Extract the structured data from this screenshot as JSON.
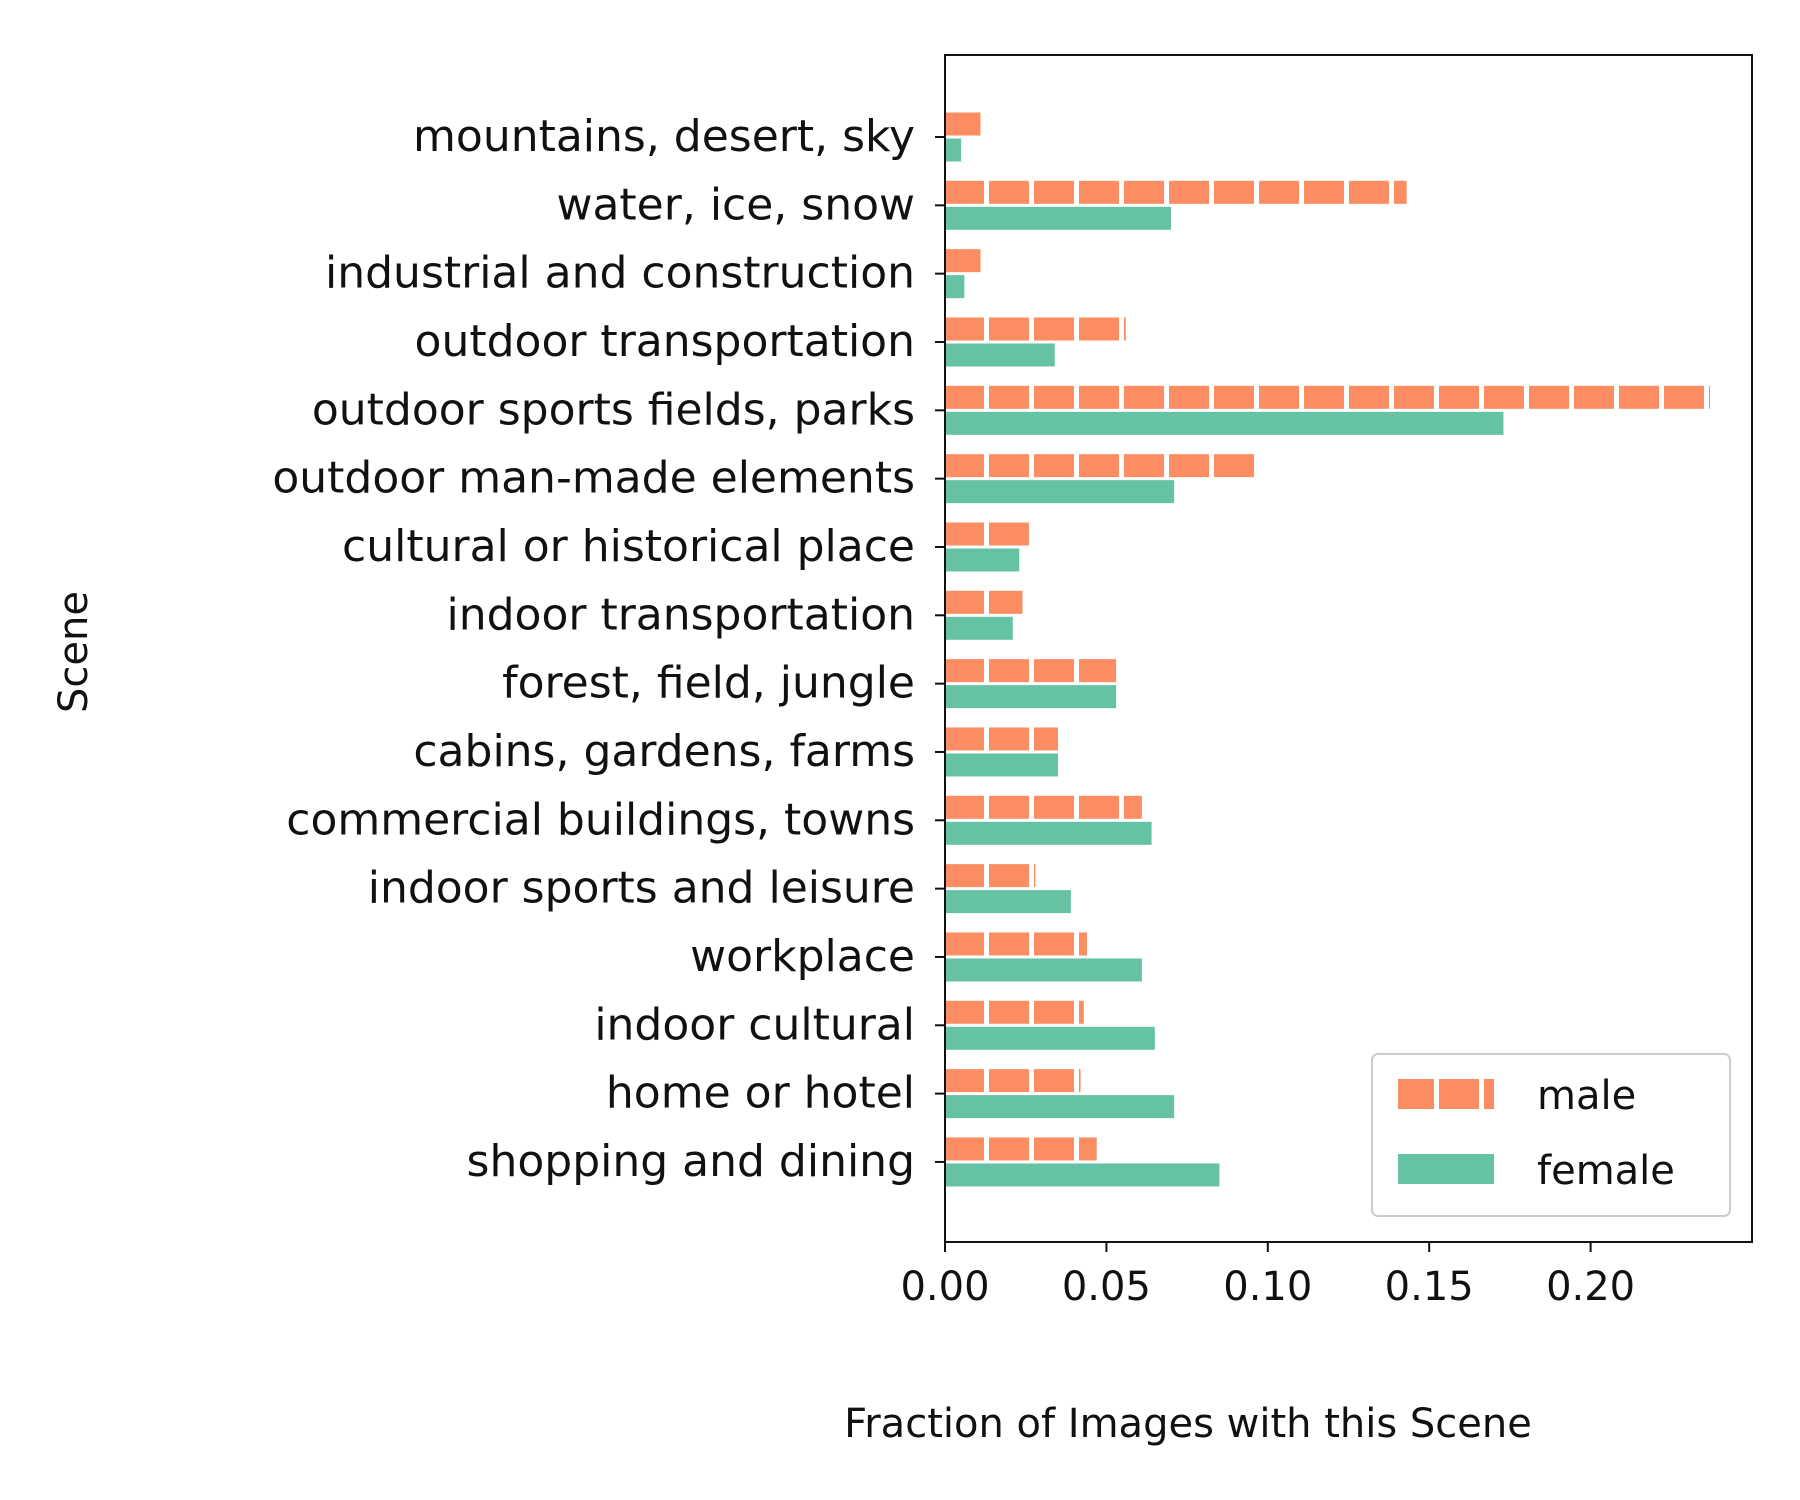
{
  "chart_data": {
    "type": "bar",
    "orientation": "horizontal",
    "title": "",
    "xlabel": "Fraction of Images with this Scene",
    "ylabel": "Scene",
    "xlim": [
      0,
      0.25
    ],
    "xticks": [
      0.0,
      0.05,
      0.1,
      0.15,
      0.2
    ],
    "xtick_labels": [
      "0.00",
      "0.05",
      "0.10",
      "0.15",
      "0.20"
    ],
    "grid": false,
    "legend_position": "lower-right",
    "categories": [
      "mountains, desert, sky",
      "water, ice, snow",
      "industrial and construction",
      "outdoor transportation",
      "outdoor sports fields, parks",
      "outdoor man-made elements",
      "cultural or historical place",
      "indoor transportation",
      "forest, field, jungle",
      "cabins, gardens, farms",
      "commercial buildings, towns",
      "indoor sports and leisure",
      "workplace",
      "indoor cultural",
      "home or hotel",
      "shopping and dining"
    ],
    "series": [
      {
        "name": "male",
        "color": "#fc8d62",
        "pattern": "hatched-vertical-white",
        "values": [
          0.011,
          0.143,
          0.011,
          0.056,
          0.237,
          0.096,
          0.026,
          0.024,
          0.053,
          0.035,
          0.061,
          0.028,
          0.044,
          0.043,
          0.042,
          0.047
        ]
      },
      {
        "name": "female",
        "color": "#66c2a5",
        "pattern": "solid",
        "values": [
          0.005,
          0.07,
          0.006,
          0.034,
          0.173,
          0.071,
          0.023,
          0.021,
          0.053,
          0.035,
          0.064,
          0.039,
          0.061,
          0.065,
          0.071,
          0.085
        ]
      }
    ]
  }
}
